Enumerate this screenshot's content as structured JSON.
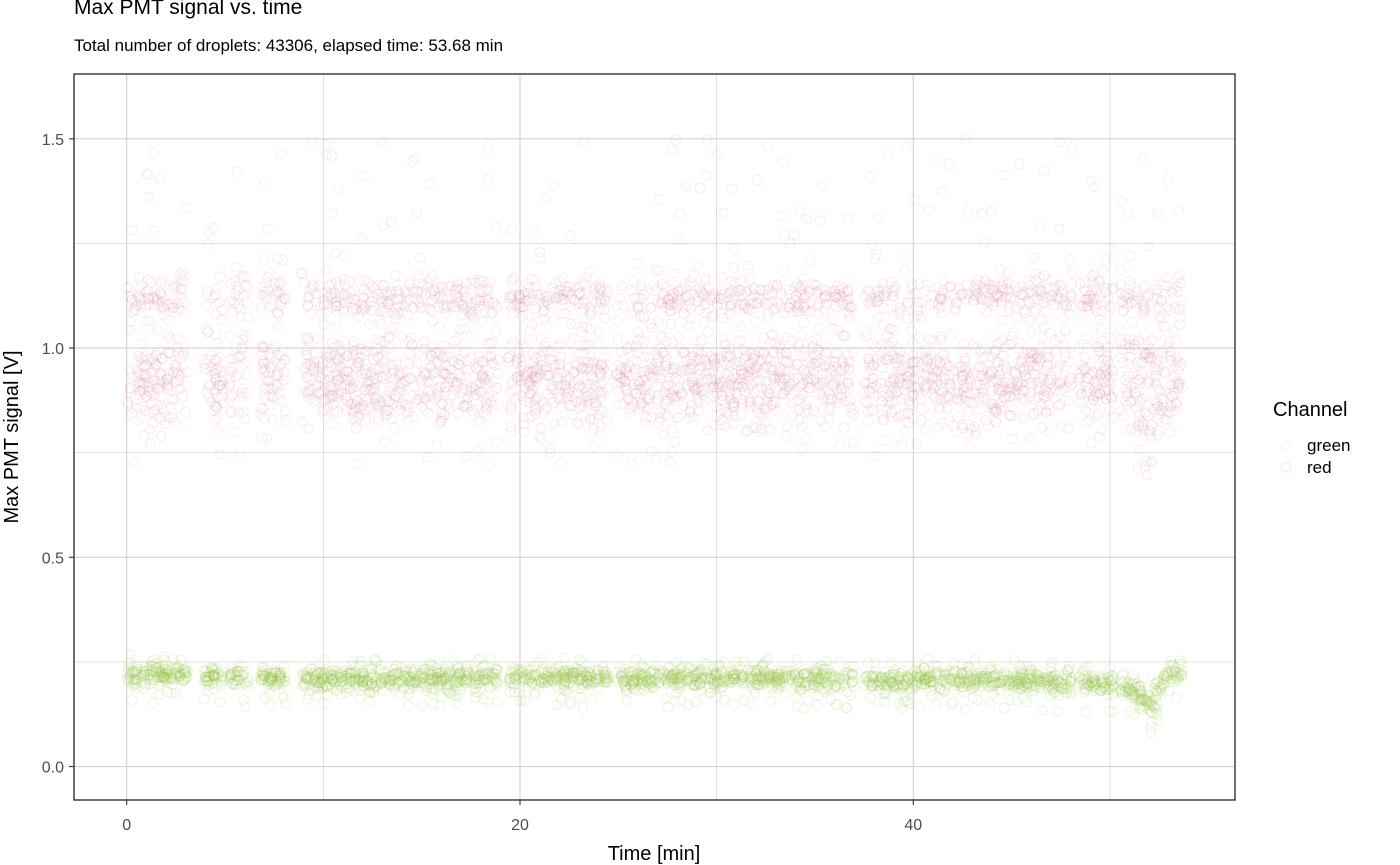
{
  "chart_data": {
    "type": "scatter",
    "title": "Max PMT signal vs. time",
    "subtitle": "Total number of droplets: 43306, elapsed time: 53.68 min",
    "xlabel": "Time [min]",
    "ylabel": "Max PMT signal [V]",
    "xlim": [
      -2.68,
      56.36
    ],
    "ylim": [
      -0.08,
      1.655
    ],
    "x_ticks": [
      0,
      20,
      40
    ],
    "x_tick_labels": [
      "0",
      "20",
      "40"
    ],
    "y_ticks": [
      0.0,
      0.5,
      1.0,
      1.5
    ],
    "y_tick_labels": [
      "0.0",
      "0.5",
      "1.0",
      "1.5"
    ],
    "grid": true,
    "legend": {
      "title": "Channel",
      "placement": "right"
    },
    "droplet_count": 43306,
    "elapsed_time_min": 53.68,
    "gap_intervals_min": [
      [
        3.1,
        3.9
      ],
      [
        4.9,
        5.2
      ],
      [
        6.2,
        6.8
      ],
      [
        8.1,
        8.9
      ],
      [
        18.9,
        19.4
      ],
      [
        24.5,
        24.9
      ],
      [
        37.0,
        37.5
      ],
      [
        48.1,
        48.4
      ],
      [
        50.2,
        50.5
      ]
    ],
    "series": [
      {
        "name": "green",
        "color": "#8fbf3a",
        "points_sampled": [
          {
            "x": 0.5,
            "y": 0.22
          },
          {
            "x": 2.0,
            "y": 0.22
          },
          {
            "x": 5.5,
            "y": 0.215
          },
          {
            "x": 10.0,
            "y": 0.21
          },
          {
            "x": 15.0,
            "y": 0.21
          },
          {
            "x": 20.0,
            "y": 0.215
          },
          {
            "x": 25.0,
            "y": 0.21
          },
          {
            "x": 30.0,
            "y": 0.21
          },
          {
            "x": 35.0,
            "y": 0.21
          },
          {
            "x": 38.0,
            "y": 0.205
          },
          {
            "x": 42.0,
            "y": 0.21
          },
          {
            "x": 46.0,
            "y": 0.205
          },
          {
            "x": 48.5,
            "y": 0.2
          },
          {
            "x": 50.5,
            "y": 0.195
          },
          {
            "x": 51.8,
            "y": 0.165
          },
          {
            "x": 52.1,
            "y": 0.13
          },
          {
            "x": 53.0,
            "y": 0.23
          }
        ]
      },
      {
        "name": "red",
        "color": "#c8325f",
        "points_sampled": [
          {
            "x": 0.5,
            "y": 0.93
          },
          {
            "x": 0.5,
            "y": 1.12
          },
          {
            "x": 10.0,
            "y": 0.92
          },
          {
            "x": 10.0,
            "y": 1.12
          },
          {
            "x": 20.0,
            "y": 0.92
          },
          {
            "x": 20.0,
            "y": 1.12
          },
          {
            "x": 30.0,
            "y": 0.92
          },
          {
            "x": 30.0,
            "y": 1.12
          },
          {
            "x": 40.0,
            "y": 0.92
          },
          {
            "x": 40.0,
            "y": 1.12
          },
          {
            "x": 50.0,
            "y": 0.9
          },
          {
            "x": 50.0,
            "y": 1.12
          },
          {
            "x": 51.8,
            "y": 0.8
          }
        ]
      }
    ]
  }
}
